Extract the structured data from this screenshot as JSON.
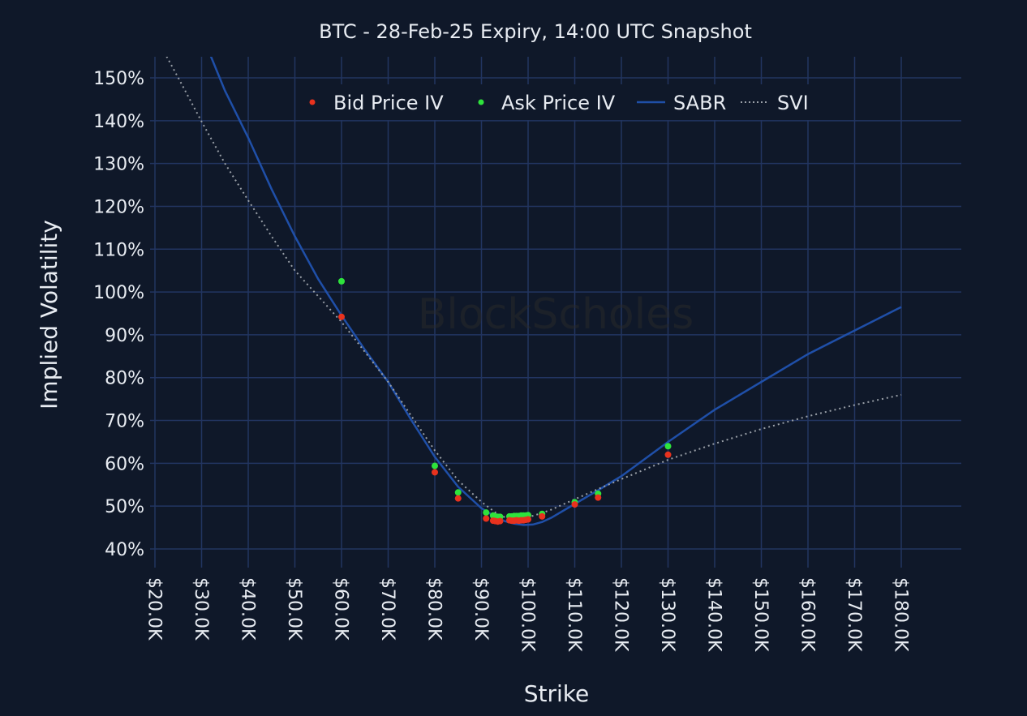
{
  "chart_data": {
    "type": "scatter",
    "title": "BTC - 28-Feb-25 Expiry, 14:00 UTC Snapshot",
    "xlabel": "Strike",
    "ylabel": "Implied Volatility",
    "xlim": [
      16.5,
      193
    ],
    "ylim": [
      35.5,
      155
    ],
    "x_ticks": [
      20,
      30,
      40,
      50,
      60,
      70,
      80,
      90,
      100,
      110,
      120,
      130,
      140,
      150,
      160,
      170,
      180
    ],
    "x_tick_labels": [
      "$20.0K",
      "$30.0K",
      "$40.0K",
      "$50.0K",
      "$60.0K",
      "$70.0K",
      "$80.0K",
      "$90.0K",
      "$100.0K",
      "$110.0K",
      "$120.0K",
      "$130.0K",
      "$140.0K",
      "$150.0K",
      "$160.0K",
      "$170.0K",
      "$180.0K"
    ],
    "y_ticks": [
      40,
      50,
      60,
      70,
      80,
      90,
      100,
      110,
      120,
      130,
      140,
      150
    ],
    "y_tick_labels": [
      "40%",
      "50%",
      "60%",
      "70%",
      "80%",
      "90%",
      "100%",
      "110%",
      "120%",
      "130%",
      "140%",
      "150%"
    ],
    "grid": true,
    "legend_position": "top-center",
    "watermark": "BlockScholes",
    "series": [
      {
        "name": "Bid Price IV",
        "kind": "markers",
        "color": "#e8321e",
        "x": [
          60,
          80,
          85,
          91,
          92.5,
          93,
          93.5,
          94,
          96,
          96.5,
          97,
          97.5,
          98,
          98.5,
          99,
          99.5,
          100,
          103,
          110,
          115,
          130
        ],
        "y": [
          94.2,
          57.9,
          51.8,
          47.1,
          46.6,
          46.5,
          46.4,
          46.5,
          46.7,
          46.6,
          46.6,
          46.7,
          46.6,
          46.7,
          46.7,
          46.8,
          46.9,
          47.6,
          50.4,
          52,
          62
        ]
      },
      {
        "name": "Ask Price IV",
        "kind": "markers",
        "color": "#2ee33c",
        "x": [
          60,
          80,
          85,
          91,
          92.5,
          93,
          93.5,
          94,
          96,
          96.5,
          97,
          97.5,
          98,
          98.5,
          99,
          99.5,
          100,
          103,
          110,
          115,
          130
        ],
        "y": [
          102.5,
          59.4,
          53.2,
          48.5,
          47.8,
          47.6,
          47.5,
          47.5,
          47.6,
          47.6,
          47.7,
          47.7,
          47.7,
          47.8,
          47.8,
          47.8,
          47.9,
          48.2,
          50.9,
          52.9,
          64
        ]
      },
      {
        "name": "SABR",
        "kind": "line",
        "color": "#1f4fa8",
        "x": [
          32,
          35,
          40,
          45,
          50,
          55,
          60,
          65,
          70,
          75,
          80,
          85,
          90,
          93,
          95,
          97,
          99,
          101,
          103,
          105,
          110,
          115,
          120,
          130,
          140,
          150,
          160,
          170,
          180
        ],
        "y": [
          155,
          147,
          136,
          124,
          113,
          103,
          94.5,
          86.5,
          79,
          70,
          61.5,
          54.5,
          49.5,
          47.5,
          46.5,
          45.9,
          45.6,
          45.7,
          46.3,
          47.3,
          50.5,
          53.7,
          57,
          65,
          72.5,
          79,
          85.5,
          91,
          96.5
        ]
      },
      {
        "name": "SVI",
        "kind": "dotted",
        "color": "#9aa0a8",
        "x": [
          22.5,
          25,
          30,
          35,
          40,
          45,
          50,
          55,
          60,
          65,
          70,
          75,
          80,
          85,
          90,
          93,
          95,
          97,
          100,
          103,
          105,
          110,
          115,
          120,
          130,
          140,
          150,
          160,
          170,
          180
        ],
        "y": [
          155,
          150,
          139.8,
          130,
          121.4,
          113,
          105,
          99,
          93,
          86,
          79,
          71,
          63,
          56,
          51,
          48.5,
          47.4,
          46.9,
          47.4,
          48.4,
          49.2,
          51.6,
          54,
          56.3,
          60.8,
          64.6,
          68,
          71,
          73.6,
          76
        ]
      }
    ]
  }
}
